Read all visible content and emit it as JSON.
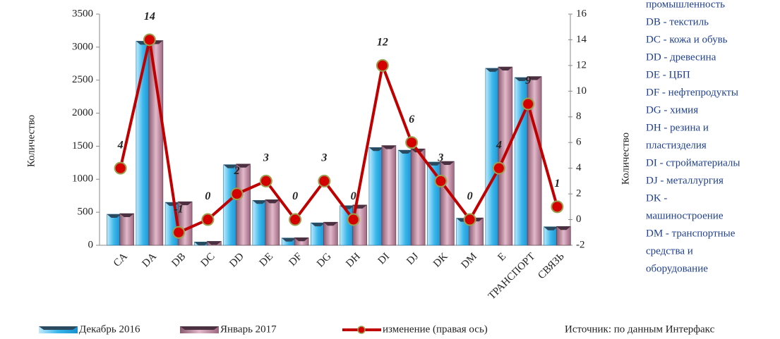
{
  "chart_data": {
    "type": "bar_line",
    "categories": [
      "CA",
      "DA",
      "DB",
      "DC",
      "DD",
      "DE",
      "DF",
      "DG",
      "DH",
      "DI",
      "DJ",
      "DK",
      "DM",
      "E",
      "ТРАНСПОРТ",
      "СВЯЗЬ"
    ],
    "series": [
      {
        "name": "Декабрь 2016",
        "color": "#39b6ea",
        "values": [
          470,
          3090,
          650,
          50,
          1220,
          680,
          110,
          340,
          600,
          1480,
          1440,
          1260,
          410,
          2680,
          2540,
          280
        ]
      },
      {
        "name": "Январь 2017",
        "color": "#c290a6",
        "values": [
          480,
          3100,
          660,
          60,
          1230,
          690,
          115,
          350,
          610,
          1510,
          1460,
          1270,
          415,
          2700,
          2555,
          285
        ]
      },
      {
        "name": "изменение (правая ось)",
        "color": "#c00000",
        "axis": "y2",
        "values": [
          4,
          14,
          -1,
          0,
          2,
          3,
          0,
          3,
          0,
          12,
          6,
          3,
          0,
          4,
          9,
          1
        ]
      }
    ],
    "ylabel": "Количество",
    "y2label": "Количество",
    "ylim": [
      0,
      3500
    ],
    "yticks": [
      0,
      500,
      1000,
      1500,
      2000,
      2500,
      3000,
      3500
    ],
    "y2lim": [
      -2,
      16
    ],
    "y2ticks": [
      -2,
      0,
      2,
      4,
      6,
      8,
      10,
      12,
      14,
      16
    ],
    "annotations": [
      "промышленность",
      "DB - текстиль",
      "DC - кожа и обувь",
      "DD - древесина",
      "DE - ЦБП",
      "DF - нефтепродукты",
      "DG - химия",
      "DH - резина и",
      "пластизделия",
      "DI - стройматериалы",
      "DJ - металлургия",
      "DK -",
      "машиностроение",
      "DM - транспортные",
      "средства и",
      "оборудование"
    ],
    "source": "Источник: по данным Интерфакс"
  }
}
